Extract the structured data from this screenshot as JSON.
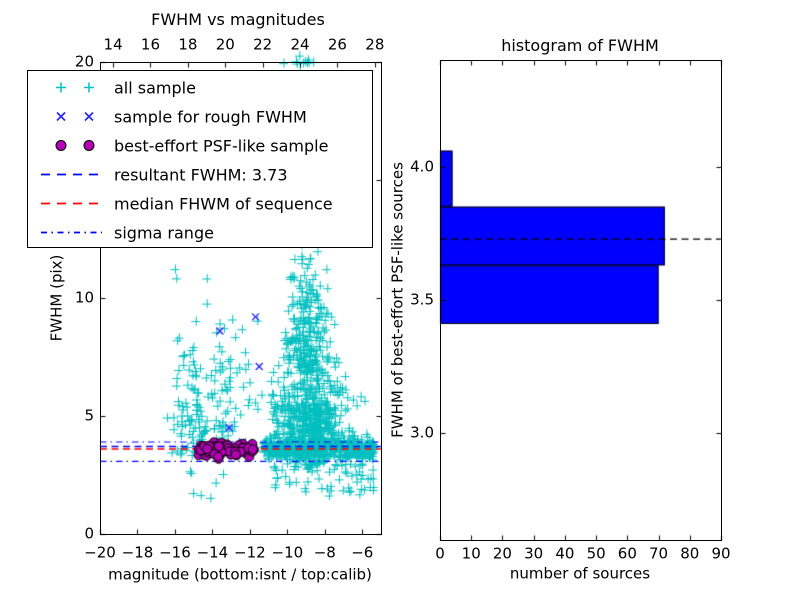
{
  "figure": {
    "background": "#ffffff",
    "palette": {
      "all_sample": "#00bfbf",
      "rough_sample": "#2424ff",
      "best_effort_fill": "#b400b4",
      "best_effort_edge": "#000000",
      "resultant_line": "#0000ff",
      "median_line": "#ff0000",
      "sigma_line": "#0000ff",
      "histogram_bar": "#0000ff",
      "histogram_dashed_line": "#000000",
      "axes": "#000000"
    }
  },
  "legend": {
    "items": [
      {
        "label": "all sample",
        "type": "scatter",
        "marker": "plus",
        "color": "#00bfbf"
      },
      {
        "label": "sample for rough FWHM",
        "type": "scatter",
        "marker": "x",
        "color": "#2424ff"
      },
      {
        "label": "best-effort PSF-like sample",
        "type": "scatter",
        "marker": "circle",
        "color": "#b400b4",
        "edge": "#000000"
      },
      {
        "label": "resultant FWHM: 3.73",
        "type": "line",
        "dash": "dashed",
        "color": "#0000ff"
      },
      {
        "label": "median FHWM of sequence",
        "type": "line",
        "dash": "dashed",
        "color": "#ff0000"
      },
      {
        "label": "sigma range",
        "type": "line",
        "dash": "dashdot",
        "color": "#0000ff"
      }
    ]
  },
  "chart_data": [
    {
      "id": "fwhm_vs_magnitudes",
      "type": "scatter",
      "title": "FWHM vs magnitudes",
      "xlabel": "magnitude (bottom:isnt / top:calib)",
      "ylabel": "FWHM (pix)",
      "xlim_bottom": [
        -20,
        -5
      ],
      "xlim_top": [
        13.3,
        28.33
      ],
      "ylim": [
        0,
        20
      ],
      "xticks_bottom": {
        "values": [
          -20,
          -18,
          -16,
          -14,
          -12,
          -10,
          -8,
          -6
        ],
        "labels": [
          "−20",
          "−18",
          "−16",
          "−14",
          "−12",
          "−10",
          "−8",
          "−6"
        ]
      },
      "xticks_top": {
        "values": [
          14,
          16,
          18,
          20,
          22,
          24,
          26,
          28
        ],
        "labels": [
          "14",
          "16",
          "18",
          "20",
          "22",
          "24",
          "26",
          "28"
        ]
      },
      "yticks": {
        "values": [
          0,
          5,
          10,
          15,
          20
        ],
        "labels": [
          "0",
          "5",
          "10",
          "15",
          "20"
        ]
      },
      "lines": {
        "resultant_fwhm": 3.73,
        "median_fwhm": 3.62,
        "sigma_range": [
          3.1,
          3.92
        ]
      },
      "series": [
        {
          "name": "all sample",
          "marker": "plus",
          "color": "#00bfbf",
          "clusters": [
            {
              "n": 520,
              "x": {
                "dist": "normal",
                "mean": -8.8,
                "sd": 0.95,
                "min": -10.9,
                "max": -5.35
              },
              "y": {
                "dist": "normal",
                "mean": 4.7,
                "sd": 1.15,
                "min": 2.7,
                "max": 7.5
              }
            },
            {
              "n": 240,
              "x": {
                "dist": "normal",
                "mean": -8.95,
                "sd": 0.6,
                "min": -10.5,
                "max": -6.5
              },
              "y": {
                "dist": "halfup",
                "base": 6.8,
                "scale": 2.6,
                "min": 6.8,
                "max": 13.5
              }
            },
            {
              "n": 80,
              "x": {
                "dist": "normal",
                "mean": -8.9,
                "sd": 0.8,
                "min": -10.8,
                "max": -6.2
              },
              "y": {
                "dist": "halfup",
                "base": 13.5,
                "scale": 3.0,
                "min": 13.5,
                "max": 20.1
              }
            },
            {
              "n": 430,
              "x": {
                "dist": "uniform",
                "min": -11.3,
                "max": -5.35
              },
              "y": {
                "dist": "normal",
                "mean": 3.62,
                "sd": 0.22,
                "min": 2.9,
                "max": 4.3
              }
            },
            {
              "n": 55,
              "x": {
                "dist": "uniform",
                "min": -10.8,
                "max": -5.4
              },
              "y": {
                "dist": "uniform",
                "min": 1.6,
                "max": 3.0
              }
            },
            {
              "n": 100,
              "x": {
                "dist": "normal",
                "mean": -15.2,
                "sd": 0.6,
                "min": -16.6,
                "max": -13.9
              },
              "y": {
                "dist": "halfup",
                "base": 3.3,
                "scale": 2.8,
                "min": 3.0,
                "max": 12.3
              }
            },
            {
              "n": 62,
              "x": {
                "dist": "normal",
                "mean": -13.35,
                "sd": 0.38,
                "min": -14.2,
                "max": -12.6
              },
              "y": {
                "dist": "halfup",
                "base": 3.4,
                "scale": 2.5,
                "min": 3.0,
                "max": 12.9
              }
            },
            {
              "n": 16,
              "x": {
                "dist": "uniform",
                "min": -12.6,
                "max": -11.3
              },
              "y": {
                "dist": "uniform",
                "min": 3.4,
                "max": 9.8
              }
            },
            {
              "n": 8,
              "x": {
                "dist": "uniform",
                "min": -9.55,
                "max": -8.85
              },
              "y": {
                "dist": "normal",
                "mean": 20,
                "sd": 0.18,
                "min": 19.6,
                "max": 20.3
              }
            },
            {
              "n": 7,
              "x": {
                "dist": "uniform",
                "min": -15.4,
                "max": -13.2
              },
              "y": {
                "dist": "uniform",
                "min": 1.4,
                "max": 3.1
              }
            }
          ]
        },
        {
          "name": "sample for rough FWHM",
          "marker": "x",
          "color": "#2424ff",
          "points": [
            [
              -13.6,
              8.6
            ],
            [
              -11.7,
              9.2
            ],
            [
              -11.5,
              7.1
            ],
            [
              -13.1,
              4.5
            ],
            [
              -12.4,
              3.9
            ],
            [
              -13.4,
              3.8
            ]
          ]
        },
        {
          "name": "best-effort PSF-like sample",
          "marker": "circle",
          "color": "#b400b4",
          "edge": "#000000",
          "clusters": [
            {
              "n": 80,
              "x": {
                "dist": "uniform",
                "min": -14.75,
                "max": -11.75
              },
              "y": {
                "dist": "normal",
                "mean": 3.55,
                "sd": 0.17,
                "min": 3.12,
                "max": 3.9
              }
            }
          ]
        }
      ]
    },
    {
      "id": "histogram_of_fwhm",
      "type": "bar",
      "orientation": "horizontal",
      "title": "histogram of FWHM",
      "xlabel": "number of sources",
      "ylabel": "FWHM of best-effort PSF-like sources",
      "xlim": [
        0,
        90
      ],
      "ylim": [
        2.6,
        4.4
      ],
      "xticks": {
        "values": [
          0,
          10,
          20,
          30,
          40,
          50,
          60,
          70,
          80,
          90
        ],
        "labels": [
          "0",
          "10",
          "20",
          "30",
          "40",
          "50",
          "60",
          "70",
          "80",
          "90"
        ]
      },
      "yticks": {
        "values": [
          3.0,
          3.5,
          4.0
        ],
        "labels": [
          "3.0",
          "3.5",
          "4.0"
        ]
      },
      "bins": [
        {
          "from": 3.41,
          "to": 3.63,
          "count": 70
        },
        {
          "from": 3.63,
          "to": 3.85,
          "count": 72
        },
        {
          "from": 3.85,
          "to": 4.06,
          "count": 4
        }
      ],
      "dashed_line_value": 3.73,
      "bar_color": "#0000ff"
    }
  ]
}
